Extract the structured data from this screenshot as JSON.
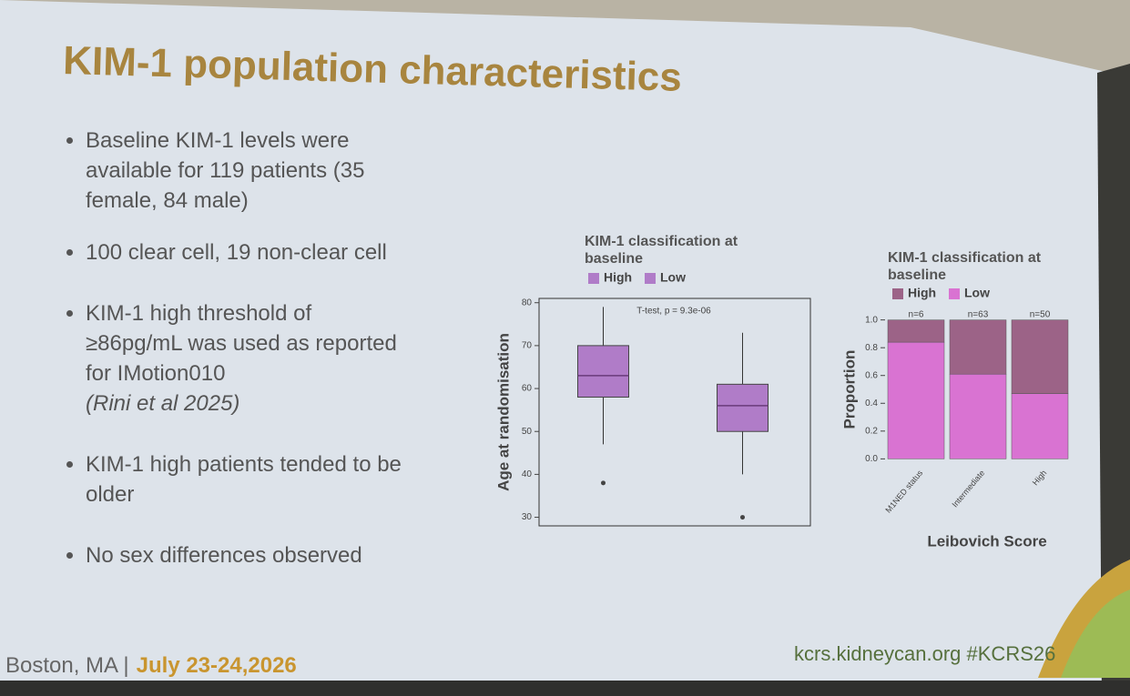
{
  "slide": {
    "title": "KIM-1 population characteristics",
    "bullets": [
      {
        "text": "Baseline KIM-1 levels were available for 119 patients (35 female, 84 male)"
      },
      {
        "text": "100 clear cell, 19 non-clear cell"
      },
      {
        "text": "KIM-1 high threshold of ≥86pg/mL was used as reported for IMotion010",
        "citation": "(Rini et al 2025)"
      },
      {
        "text": "KIM-1 high patients tended to be older"
      },
      {
        "text": "No sex differences observed"
      }
    ],
    "footer": {
      "location": "Boston, MA",
      "separator": "|",
      "dates": "July 23-24,2026",
      "website": "kcrs.kidneycan.org #KCRS26"
    }
  },
  "chart_data": [
    {
      "type": "box",
      "title": "KIM-1 classification at baseline",
      "ylabel": "Age at randomisation",
      "annotation": "T-test, p = 9.3e-06",
      "ylim": [
        28,
        81
      ],
      "yticks": [
        30,
        40,
        50,
        60,
        70,
        80
      ],
      "series": [
        {
          "name": "High",
          "color": "#b07cc8",
          "whislo": 47,
          "q1": 58,
          "median": 63,
          "q3": 70,
          "whishi": 79,
          "outliers": [
            38
          ]
        },
        {
          "name": "Low",
          "color": "#b07cc8",
          "whislo": 40,
          "q1": 50,
          "median": 56,
          "q3": 61,
          "whishi": 73,
          "outliers": [
            30
          ]
        }
      ]
    },
    {
      "type": "stacked_bar",
      "title": "KIM-1 classification at baseline",
      "xlabel": "Leibovich Score",
      "ylabel": "Proportion",
      "categories": [
        "M1NED status",
        "Intermediate",
        "High"
      ],
      "annotations": [
        "n=6",
        "n=63",
        "n=50"
      ],
      "ylim": [
        -0.05,
        1.05
      ],
      "yticks": [
        {
          "value": 0,
          "label": "0.0"
        },
        0.2,
        0.4,
        0.6,
        0.8,
        {
          "value": 1,
          "label": "1.0"
        }
      ],
      "series": [
        {
          "name": "High",
          "color": "#9c6387",
          "values": [
            0.16,
            0.39,
            0.53
          ]
        },
        {
          "name": "Low",
          "color": "#d973d2",
          "values": [
            0.84,
            0.61,
            0.47
          ]
        }
      ]
    }
  ]
}
